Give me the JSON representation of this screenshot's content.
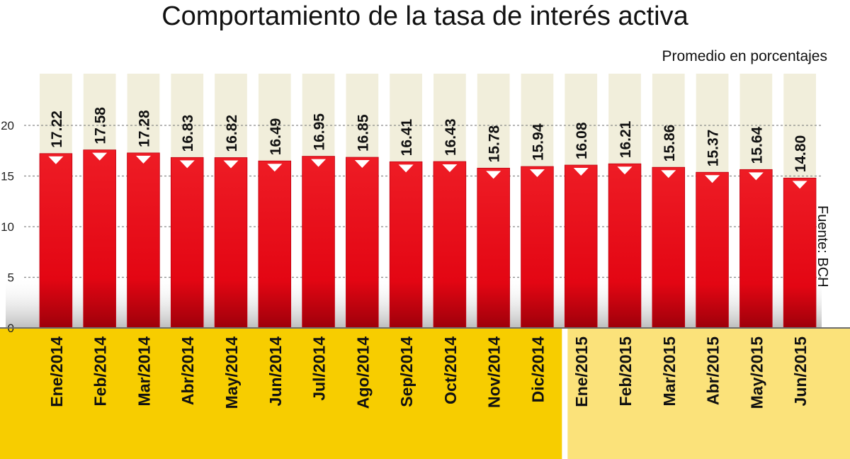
{
  "chart_data": {
    "type": "bar",
    "title": "Comportamiento de la tasa de interés activa",
    "subtitle": "Promedio en porcentajes",
    "source": "Fuente: BCH",
    "categories": [
      "Ene/2014",
      "Feb/2014",
      "Mar/2014",
      "Abr/2014",
      "May/2014",
      "Jun/2014",
      "Jul/2014",
      "Ago/2014",
      "Sep/2014",
      "Oct/2014",
      "Nov/2014",
      "Dic/2014",
      "Ene/2015",
      "Feb/2015",
      "Mar/2015",
      "Abr/2015",
      "May/2015",
      "Jun/2015"
    ],
    "values": [
      17.22,
      17.58,
      17.28,
      16.83,
      16.82,
      16.49,
      16.95,
      16.85,
      16.41,
      16.43,
      15.78,
      15.94,
      16.08,
      16.21,
      15.86,
      15.37,
      15.64,
      14.8
    ],
    "value_labels": [
      "17.22",
      "17.58",
      "17.28",
      "16.83",
      "16.82",
      "16.49",
      "16.95",
      "16.85",
      "16.41",
      "16.43",
      "15.78",
      "15.94",
      "16.08",
      "16.21",
      "15.86",
      "15.37",
      "15.64",
      "14.80"
    ],
    "y_ticks": [
      0,
      5,
      10,
      15,
      20
    ],
    "y_tick_labels": [
      "0",
      "5",
      "10",
      "15",
      "20"
    ],
    "ylim": [
      0,
      25
    ],
    "grid": true,
    "colors": {
      "bar": "#e30613",
      "bar_dark": "#a5000b",
      "column_bg": "#f1eedb",
      "band_2014": "#f7cd00",
      "band_2015": "#fbe27a",
      "gridline": "#8a8a8a"
    }
  }
}
